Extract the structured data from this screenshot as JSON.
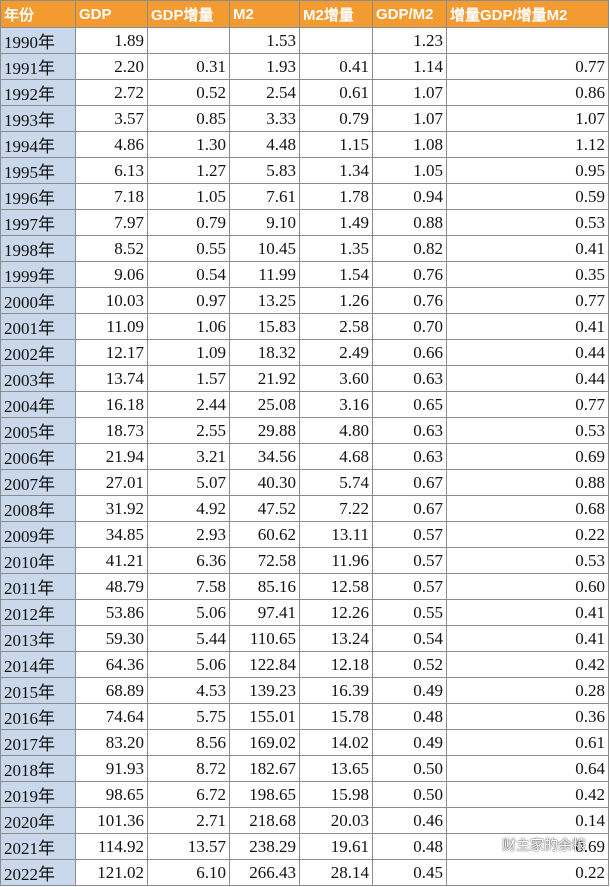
{
  "headers": [
    "年份",
    "GDP",
    "GDP增量",
    "M2",
    "M2增量",
    "GDP/M2",
    "增量GDP/增量M2"
  ],
  "rows": [
    [
      "1990年",
      "1.89",
      "",
      "1.53",
      "",
      "1.23",
      ""
    ],
    [
      "1991年",
      "2.20",
      "0.31",
      "1.93",
      "0.41",
      "1.14",
      "0.77"
    ],
    [
      "1992年",
      "2.72",
      "0.52",
      "2.54",
      "0.61",
      "1.07",
      "0.86"
    ],
    [
      "1993年",
      "3.57",
      "0.85",
      "3.33",
      "0.79",
      "1.07",
      "1.07"
    ],
    [
      "1994年",
      "4.86",
      "1.30",
      "4.48",
      "1.15",
      "1.08",
      "1.12"
    ],
    [
      "1995年",
      "6.13",
      "1.27",
      "5.83",
      "1.34",
      "1.05",
      "0.95"
    ],
    [
      "1996年",
      "7.18",
      "1.05",
      "7.61",
      "1.78",
      "0.94",
      "0.59"
    ],
    [
      "1997年",
      "7.97",
      "0.79",
      "9.10",
      "1.49",
      "0.88",
      "0.53"
    ],
    [
      "1998年",
      "8.52",
      "0.55",
      "10.45",
      "1.35",
      "0.82",
      "0.41"
    ],
    [
      "1999年",
      "9.06",
      "0.54",
      "11.99",
      "1.54",
      "0.76",
      "0.35"
    ],
    [
      "2000年",
      "10.03",
      "0.97",
      "13.25",
      "1.26",
      "0.76",
      "0.77"
    ],
    [
      "2001年",
      "11.09",
      "1.06",
      "15.83",
      "2.58",
      "0.70",
      "0.41"
    ],
    [
      "2002年",
      "12.17",
      "1.09",
      "18.32",
      "2.49",
      "0.66",
      "0.44"
    ],
    [
      "2003年",
      "13.74",
      "1.57",
      "21.92",
      "3.60",
      "0.63",
      "0.44"
    ],
    [
      "2004年",
      "16.18",
      "2.44",
      "25.08",
      "3.16",
      "0.65",
      "0.77"
    ],
    [
      "2005年",
      "18.73",
      "2.55",
      "29.88",
      "4.80",
      "0.63",
      "0.53"
    ],
    [
      "2006年",
      "21.94",
      "3.21",
      "34.56",
      "4.68",
      "0.63",
      "0.69"
    ],
    [
      "2007年",
      "27.01",
      "5.07",
      "40.30",
      "5.74",
      "0.67",
      "0.88"
    ],
    [
      "2008年",
      "31.92",
      "4.92",
      "47.52",
      "7.22",
      "0.67",
      "0.68"
    ],
    [
      "2009年",
      "34.85",
      "2.93",
      "60.62",
      "13.11",
      "0.57",
      "0.22"
    ],
    [
      "2010年",
      "41.21",
      "6.36",
      "72.58",
      "11.96",
      "0.57",
      "0.53"
    ],
    [
      "2011年",
      "48.79",
      "7.58",
      "85.16",
      "12.58",
      "0.57",
      "0.60"
    ],
    [
      "2012年",
      "53.86",
      "5.06",
      "97.41",
      "12.26",
      "0.55",
      "0.41"
    ],
    [
      "2013年",
      "59.30",
      "5.44",
      "110.65",
      "13.24",
      "0.54",
      "0.41"
    ],
    [
      "2014年",
      "64.36",
      "5.06",
      "122.84",
      "12.18",
      "0.52",
      "0.42"
    ],
    [
      "2015年",
      "68.89",
      "4.53",
      "139.23",
      "16.39",
      "0.49",
      "0.28"
    ],
    [
      "2016年",
      "74.64",
      "5.75",
      "155.01",
      "15.78",
      "0.48",
      "0.36"
    ],
    [
      "2017年",
      "83.20",
      "8.56",
      "169.02",
      "14.02",
      "0.49",
      "0.61"
    ],
    [
      "2018年",
      "91.93",
      "8.72",
      "182.67",
      "13.65",
      "0.50",
      "0.64"
    ],
    [
      "2019年",
      "98.65",
      "6.72",
      "198.65",
      "15.98",
      "0.50",
      "0.42"
    ],
    [
      "2020年",
      "101.36",
      "2.71",
      "218.68",
      "20.03",
      "0.46",
      "0.14"
    ],
    [
      "2021年",
      "114.92",
      "13.57",
      "238.29",
      "19.61",
      "0.48",
      "0.69"
    ],
    [
      "2022年",
      "121.02",
      "6.10",
      "266.43",
      "28.14",
      "0.45",
      "0.22"
    ]
  ],
  "watermark": {
    "text": "财主家的余粮",
    "icon": "wechat-icon"
  },
  "colors": {
    "header_bg": "#f39a30",
    "header_text": "#ffffff",
    "year_col_bg": "#c9d8ea",
    "grid": "#8c8c8c"
  }
}
